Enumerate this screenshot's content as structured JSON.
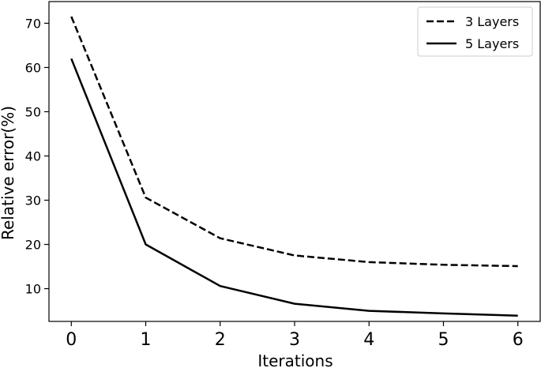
{
  "chart_data": {
    "type": "line",
    "title": "",
    "xlabel": "Iterations",
    "ylabel": "Relative error(%)",
    "x": [
      0,
      1,
      2,
      3,
      4,
      5,
      6
    ],
    "xlim": [
      -0.3,
      6.3
    ],
    "ylim": [
      2.6,
      74.9
    ],
    "xticks": [
      "0",
      "1",
      "2",
      "3",
      "4",
      "5",
      "6"
    ],
    "yticks": [
      "10",
      "20",
      "30",
      "40",
      "50",
      "60",
      "70"
    ],
    "ytick_values": [
      10,
      20,
      30,
      40,
      50,
      60,
      70
    ],
    "grid": false,
    "legend_position": "top-right",
    "series": [
      {
        "name": "3 Layers",
        "style": "dashed",
        "color": "#000000",
        "values": [
          71.5,
          30.6,
          21.4,
          17.5,
          16.0,
          15.4,
          15.1
        ]
      },
      {
        "name": "5 Layers",
        "style": "solid",
        "color": "#000000",
        "values": [
          62.0,
          20.0,
          10.6,
          6.6,
          5.0,
          4.4,
          3.9
        ]
      }
    ]
  }
}
